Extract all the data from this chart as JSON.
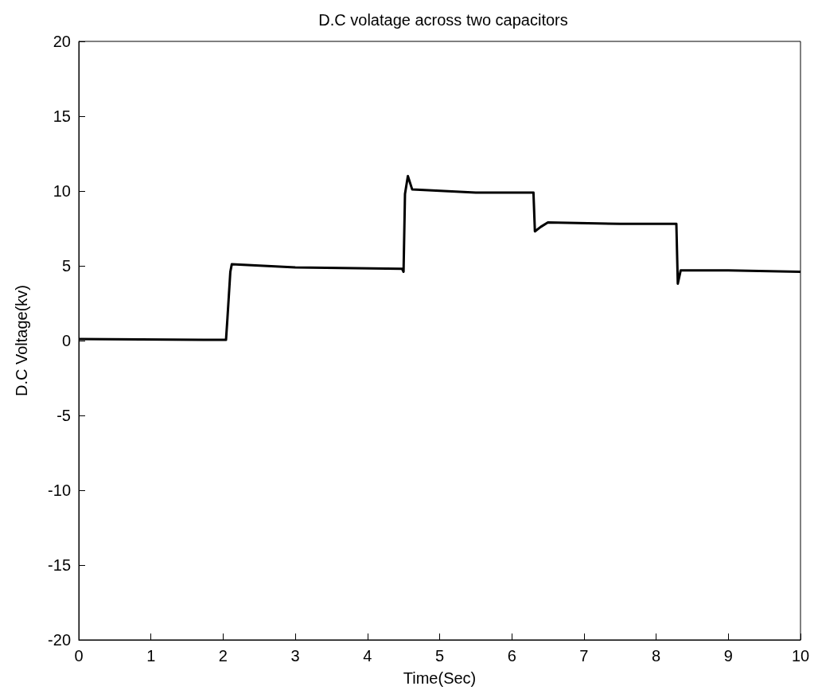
{
  "chart_data": {
    "type": "line",
    "title": "D.C volatage across two capacitors",
    "xlabel": "Time(Sec)",
    "ylabel": "D.C Voltage(kv)",
    "series": [
      {
        "color": "#000000",
        "x": [
          0,
          2.04,
          2.06,
          2.1,
          2.12,
          3,
          4.48,
          4.5,
          4.52,
          4.56,
          4.62,
          5.5,
          6.3,
          6.32,
          6.4,
          6.5,
          7.5,
          8.28,
          8.3,
          8.34,
          9,
          10
        ],
        "values": [
          0.1,
          0.05,
          1.5,
          4.6,
          5.1,
          4.9,
          4.8,
          4.6,
          9.8,
          11,
          10.1,
          9.9,
          9.9,
          7.3,
          7.6,
          7.9,
          7.8,
          7.8,
          3.8,
          4.7,
          4.7,
          4.6
        ]
      }
    ],
    "xlim": [
      0,
      10
    ],
    "xticks": [
      0,
      1,
      2,
      3,
      4,
      5,
      6,
      7,
      8,
      9,
      10
    ],
    "ylim": [
      -20,
      20
    ],
    "yticks": [
      -20,
      -15,
      -10,
      -5,
      0,
      5,
      10,
      15,
      20
    ],
    "grid": false,
    "marker": "none",
    "line_style": "solid"
  }
}
